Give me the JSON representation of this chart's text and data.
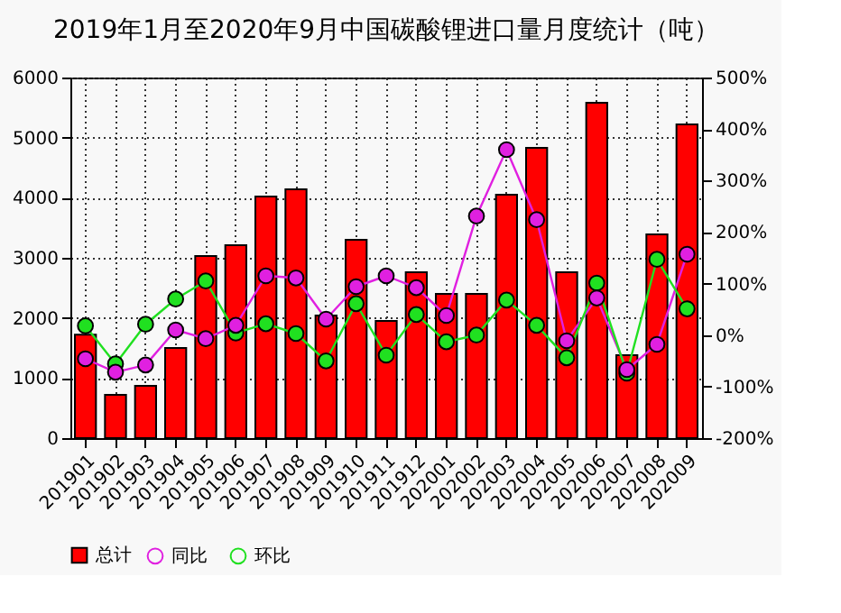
{
  "chart_data": {
    "type": "bar",
    "title": "2019年1月至2020年9月中国碳酸锂进口量月度统计（吨）",
    "categories": [
      "201901",
      "201902",
      "201903",
      "201904",
      "201905",
      "201906",
      "201907",
      "201908",
      "201909",
      "201910",
      "201911",
      "201912",
      "202001",
      "202002",
      "202003",
      "202004",
      "202005",
      "202006",
      "202007",
      "202008",
      "202009"
    ],
    "series": [
      {
        "name": "同比",
        "type": "line",
        "axis": "y2",
        "color": "#e020e0",
        "marker": "circle",
        "values": [
          -46,
          -72,
          -58,
          10,
          -7,
          19,
          115,
          111,
          31,
          94,
          115,
          92,
          38,
          231,
          360,
          224,
          -11,
          72,
          -67,
          -18,
          157
        ]
      },
      {
        "name": "环比",
        "type": "line",
        "axis": "y2",
        "color": "#20e020",
        "marker": "circle",
        "values": [
          18,
          -56,
          21,
          70,
          105,
          4,
          22,
          3,
          -50,
          61,
          -39,
          40,
          -13,
          0,
          68,
          19,
          -44,
          101,
          -74,
          147,
          51
        ]
      },
      {
        "name": "总计",
        "color": "#ff0000",
        "values": [
          1720,
          720,
          870,
          1500,
          3030,
          3210,
          4020,
          4140,
          2040,
          3300,
          1950,
          2760,
          2400,
          2400,
          4050,
          4830,
          2760,
          5580,
          1380,
          3390,
          5220
        ]
      }
    ],
    "ylim": [
      0,
      6000
    ],
    "yticks": [
      0,
      1000,
      2000,
      3000,
      4000,
      5000,
      6000
    ],
    "y2lim": [
      -200,
      500
    ],
    "y2ticks": [
      {
        "value": -200,
        "label": "-200%"
      },
      {
        "value": -100,
        "label": "-100%"
      },
      {
        "value": 0,
        "label": "0%"
      },
      {
        "value": 100,
        "label": "100%"
      },
      {
        "value": 200,
        "label": "200%"
      },
      {
        "value": 300,
        "label": "300%"
      },
      {
        "value": 400,
        "label": "400%"
      },
      {
        "value": 500,
        "label": "500%"
      }
    ],
    "grid": true,
    "legend": "bottom"
  }
}
